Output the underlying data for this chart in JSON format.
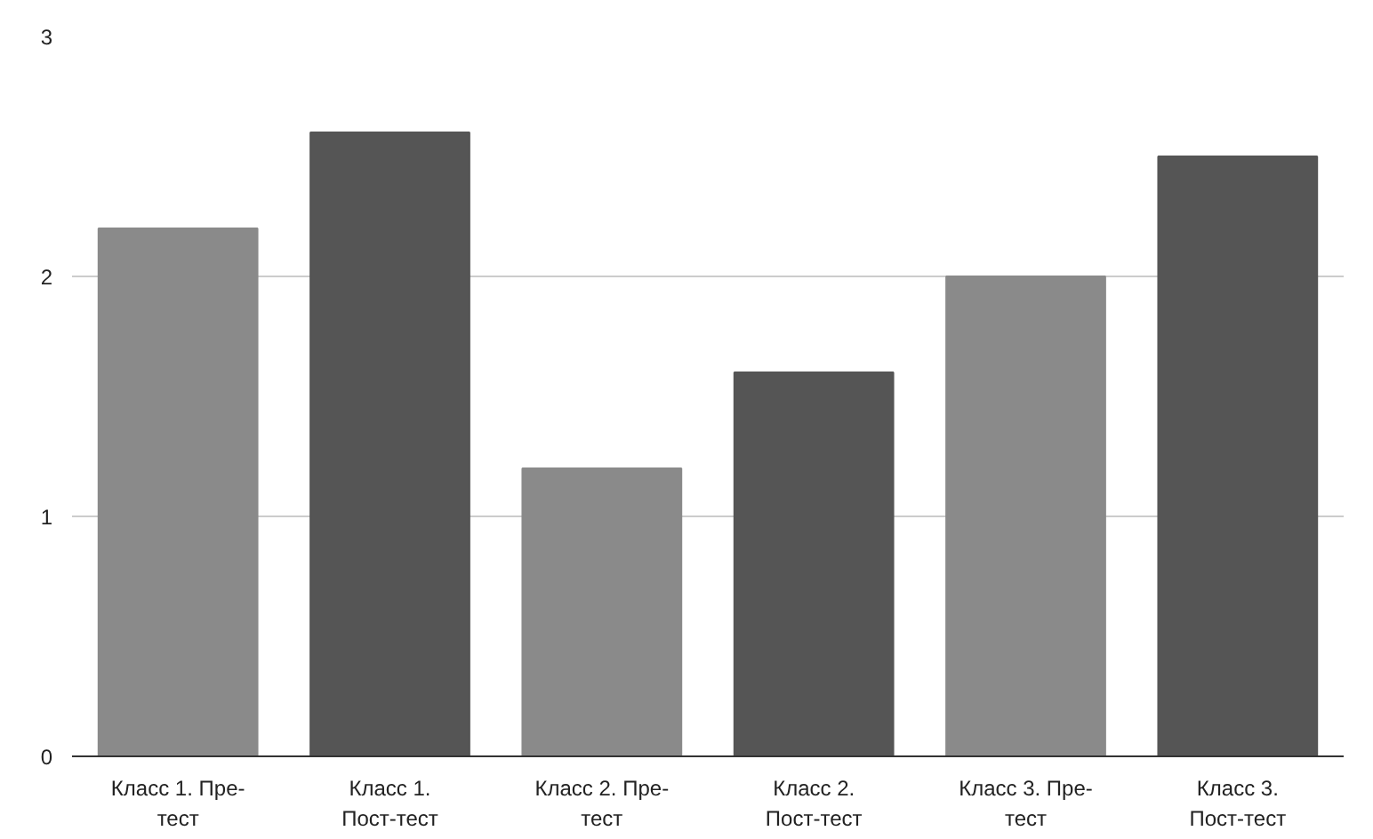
{
  "chart_data": {
    "type": "bar",
    "categories": [
      "Класс 1. Пре-тест",
      "Класс 1. Пост-тест",
      "Класс 2. Пре-тест",
      "Класс 2. Пост-тест",
      "Класс 3. Пре-тест",
      "Класс 3. Пост-тест"
    ],
    "values": [
      2.2,
      2.6,
      1.2,
      1.6,
      2.0,
      2.5
    ],
    "colors": [
      "#8a8a8a",
      "#555555",
      "#8a8a8a",
      "#555555",
      "#8a8a8a",
      "#555555"
    ],
    "ylim": [
      0,
      3
    ],
    "yticks": [
      0,
      1,
      2,
      3
    ],
    "grid": "y"
  }
}
